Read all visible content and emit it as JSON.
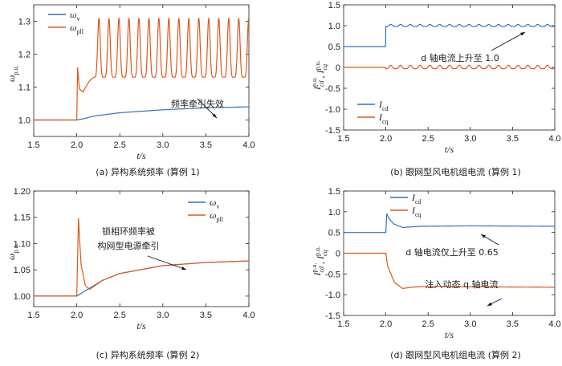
{
  "colors": {
    "blue": "#2f75b5",
    "orange": "#d9591c",
    "axis": "#222222"
  },
  "chart_data": [
    {
      "id": "a",
      "type": "line",
      "caption": "(a)  异构系统频率 (算例 1)",
      "xlabel": "t/s",
      "ylabel": "ω",
      "ylabel_sub": "p.u.",
      "xlim": [
        1.5,
        4.0
      ],
      "ylim": [
        0.95,
        1.35
      ],
      "xticks": [
        "1.5",
        "2.0",
        "2.5",
        "3.0",
        "3.5",
        "4.0"
      ],
      "yticks": [
        "1.0",
        "1.1",
        "1.2",
        "1.3"
      ],
      "legend": [
        {
          "text": "ω",
          "sub": "v",
          "color": "#2f75b5"
        },
        {
          "text": "ω",
          "sub": "pll",
          "color": "#d9591c"
        }
      ],
      "annotations": [
        {
          "text": "频率牵引失效"
        }
      ],
      "series": [
        {
          "name": "ωv",
          "color": "#2f75b5",
          "x": [
            1.5,
            2.0,
            2.1,
            2.2,
            2.5,
            3.0,
            3.5,
            4.0
          ],
          "y": [
            1.0,
            1.0,
            1.005,
            1.012,
            1.022,
            1.031,
            1.037,
            1.04
          ]
        },
        {
          "name": "ωpll",
          "color": "#d9591c",
          "x": [
            1.5,
            2.0,
            2.01,
            2.03,
            2.07,
            2.15,
            2.22,
            2.25,
            2.3,
            4.0
          ],
          "y": [
            1.0,
            1.0,
            1.16,
            1.095,
            1.085,
            1.12,
            1.32,
            1.13,
            1.31,
            1.27
          ],
          "oscillation": {
            "from": 2.2,
            "period": 0.116,
            "min": 1.13,
            "max": 1.31
          }
        }
      ]
    },
    {
      "id": "b",
      "type": "line",
      "caption": "(b)  跟网型风电机组电流 (算例 1)",
      "xlabel": "t/s",
      "ylabel": "I",
      "ylabel_sub": "cd",
      "ylabel2": "I",
      "ylabel2_sub": "cq",
      "ylabel_sup": "p.u.",
      "xlim": [
        1.5,
        4.0
      ],
      "ylim": [
        -1.5,
        1.5
      ],
      "xticks": [
        "1.5",
        "2.0",
        "2.5",
        "3.0",
        "3.5",
        "4.0"
      ],
      "yticks": [
        "-1.5",
        "-1.0",
        "-0.5",
        "0",
        "0.5",
        "1.0",
        "1.5"
      ],
      "legend": [
        {
          "text": "I",
          "sub": "cd",
          "color": "#2f75b5"
        },
        {
          "text": "I",
          "sub": "cq",
          "color": "#d9591c"
        }
      ],
      "annotations": [
        {
          "text": "d 轴电流上升至 1.0"
        }
      ],
      "series": [
        {
          "name": "Icd",
          "color": "#2f75b5",
          "x": [
            1.5,
            2.0,
            2.0,
            4.0
          ],
          "y": [
            0.5,
            0.5,
            1.0,
            1.0
          ],
          "oscillation": {
            "from": 2.0,
            "period": 0.116,
            "amp": 0.04
          }
        },
        {
          "name": "Icq",
          "color": "#d9591c",
          "x": [
            1.5,
            2.0,
            4.0
          ],
          "y": [
            0.0,
            0.0,
            0.0
          ],
          "oscillation": {
            "from": 2.0,
            "period": 0.116,
            "amp": 0.07
          }
        }
      ]
    },
    {
      "id": "c",
      "type": "line",
      "caption": "(c)  异构系统频率 (算例 2)",
      "xlabel": "t/s",
      "ylabel": "ω",
      "ylabel_sub": "p.u.",
      "xlim": [
        1.5,
        4.0
      ],
      "ylim": [
        0.98,
        1.2
      ],
      "xticks": [
        "1.5",
        "2.0",
        "2.5",
        "3.0",
        "3.5",
        "4.0"
      ],
      "yticks": [
        "1.00",
        "1.05",
        "1.10",
        "1.15",
        "1.20"
      ],
      "legend": [
        {
          "text": "ω",
          "sub": "v",
          "color": "#2f75b5"
        },
        {
          "text": "ω",
          "sub": "pll",
          "color": "#d9591c"
        }
      ],
      "annotations": [
        {
          "text": "锁相环频率被"
        },
        {
          "text": "构网型电源牵引"
        }
      ],
      "series": [
        {
          "name": "ωv",
          "color": "#2f75b5",
          "x": [
            1.5,
            2.0,
            2.1,
            2.15,
            2.3,
            2.5,
            3.0,
            3.5,
            4.0
          ],
          "y": [
            1.0,
            1.0,
            1.01,
            1.015,
            1.03,
            1.043,
            1.058,
            1.064,
            1.067
          ]
        },
        {
          "name": "ωpll",
          "color": "#d9591c",
          "x": [
            1.5,
            2.0,
            2.02,
            2.05,
            2.1,
            2.15,
            2.3,
            2.5,
            3.0,
            3.5,
            4.0
          ],
          "y": [
            1.0,
            1.0,
            1.148,
            1.06,
            1.02,
            1.013,
            1.03,
            1.043,
            1.058,
            1.064,
            1.067
          ]
        }
      ]
    },
    {
      "id": "d",
      "type": "line",
      "caption": "(d)  跟网型风电机组电流 (算例 2)",
      "xlabel": "t/s",
      "ylabel": "I",
      "ylabel_sub": "cd",
      "ylabel2": "I",
      "ylabel2_sub": "cq",
      "ylabel_sup": "p.u.",
      "xlim": [
        1.5,
        4.0
      ],
      "ylim": [
        -1.5,
        1.5
      ],
      "xticks": [
        "1.5",
        "2.0",
        "2.5",
        "3.0",
        "3.5",
        "4.0"
      ],
      "yticks": [
        "-1.5",
        "-1.0",
        "-0.5",
        "0",
        "0.5",
        "1.0",
        "1.5"
      ],
      "legend": [
        {
          "text": "I",
          "sub": "cd",
          "color": "#2f75b5"
        },
        {
          "text": "I",
          "sub": "cq",
          "color": "#d9591c"
        }
      ],
      "annotations": [
        {
          "text": "d 轴电流仅上升至 0.65"
        },
        {
          "text": "注入动态 q 轴电流"
        }
      ],
      "series": [
        {
          "name": "Icd",
          "color": "#2f75b5",
          "x": [
            1.5,
            2.0,
            2.01,
            2.05,
            2.1,
            2.2,
            2.4,
            3.0,
            4.0
          ],
          "y": [
            0.5,
            0.5,
            0.95,
            0.8,
            0.7,
            0.62,
            0.65,
            0.66,
            0.65
          ]
        },
        {
          "name": "Icq",
          "color": "#d9591c",
          "x": [
            1.5,
            2.0,
            2.02,
            2.1,
            2.2,
            2.3,
            2.5,
            3.0,
            4.0
          ],
          "y": [
            0.0,
            0.0,
            -0.3,
            -0.7,
            -0.85,
            -0.82,
            -0.8,
            -0.81,
            -0.82
          ]
        }
      ]
    }
  ]
}
